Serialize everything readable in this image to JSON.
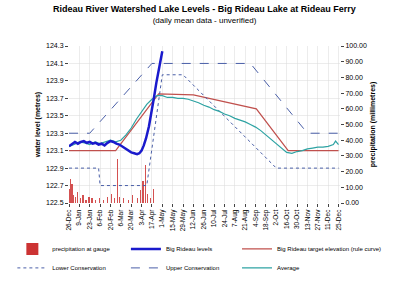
{
  "chart_data": {
    "type": "line",
    "title": "Rideau River Watershed Lake Levels - Big Rideau Lake at Rideau Ferry",
    "subtitle": "(daily mean data - unverified)",
    "y_label": "water level (metres)",
    "y2_label": "precipitation (millimetres)",
    "xlim": [
      0,
      366
    ],
    "xticks": [
      {
        "value": 0,
        "label": "26-Dec"
      },
      {
        "value": 14,
        "label": "9-Jan"
      },
      {
        "value": 28,
        "label": "23-Jan"
      },
      {
        "value": 42,
        "label": "6-Feb"
      },
      {
        "value": 56,
        "label": "20-Feb"
      },
      {
        "value": 70,
        "label": "6-Mar"
      },
      {
        "value": 84,
        "label": "20-Mar"
      },
      {
        "value": 98,
        "label": "3-Apr"
      },
      {
        "value": 112,
        "label": "17-Apr"
      },
      {
        "value": 126,
        "label": "1-May"
      },
      {
        "value": 140,
        "label": "15-May"
      },
      {
        "value": 154,
        "label": "29-May"
      },
      {
        "value": 168,
        "label": "12-Jun"
      },
      {
        "value": 182,
        "label": "26-Jun"
      },
      {
        "value": 196,
        "label": "10-Jul"
      },
      {
        "value": 210,
        "label": "24-Jul"
      },
      {
        "value": 224,
        "label": "7-Aug"
      },
      {
        "value": 238,
        "label": "21-Aug"
      },
      {
        "value": 252,
        "label": "4-Sep"
      },
      {
        "value": 266,
        "label": "18-Sep"
      },
      {
        "value": 280,
        "label": "2-Oct"
      },
      {
        "value": 294,
        "label": "16-Oct"
      },
      {
        "value": 308,
        "label": "30-Oct"
      },
      {
        "value": 322,
        "label": "13-Nov"
      },
      {
        "value": 336,
        "label": "27-Nov"
      },
      {
        "value": 350,
        "label": "11-Dec"
      },
      {
        "value": 364,
        "label": "25-Dec"
      }
    ],
    "ylim": [
      122.5,
      124.3
    ],
    "yticks": [
      122.5,
      122.7,
      122.9,
      123.1,
      123.3,
      123.5,
      123.7,
      123.9,
      124.1,
      124.3
    ],
    "y2lim": [
      0,
      100
    ],
    "y2ticks": [
      {
        "value": 0,
        "label": "0.00"
      },
      {
        "value": 10,
        "label": "10.00"
      },
      {
        "value": 20,
        "label": "20.00"
      },
      {
        "value": 30,
        "label": "30.00"
      },
      {
        "value": 40,
        "label": "40.00"
      },
      {
        "value": 50,
        "label": "50.00"
      },
      {
        "value": 60,
        "label": "60.00"
      },
      {
        "value": 70,
        "label": "70.00"
      },
      {
        "value": 80,
        "label": "80.00"
      },
      {
        "value": 90,
        "label": "90.00"
      },
      {
        "value": 100,
        "label": "100.00"
      }
    ],
    "grid": true,
    "legend": "bottom",
    "series": [
      {
        "name": "precipitation at gauge",
        "type": "bar",
        "axis": "y2",
        "color": "#cc3333",
        "x": [
          1,
          2,
          4,
          6,
          9,
          12,
          16,
          19,
          23,
          27,
          31,
          36,
          41,
          47,
          52,
          57,
          61,
          65,
          68,
          74,
          80,
          86,
          92,
          97,
          100,
          103,
          106,
          110,
          114
        ],
        "values": [
          9,
          15,
          12,
          5,
          4,
          7,
          3,
          5,
          2,
          4,
          3,
          2,
          3,
          2,
          4,
          6,
          3,
          28,
          4,
          3,
          2,
          5,
          3,
          8,
          14,
          24,
          6,
          3,
          9
        ]
      },
      {
        "name": "Big Rideau levels",
        "type": "line",
        "color": "#1a1acc",
        "line_style": "solid",
        "x": [
          0,
          4,
          8,
          12,
          16,
          20,
          24,
          28,
          32,
          36,
          40,
          44,
          48,
          52,
          56,
          60,
          64,
          68,
          72,
          76,
          80,
          84,
          88,
          92,
          95,
          98,
          101,
          104,
          108,
          112,
          115,
          118,
          121,
          124,
          126
        ],
        "values": [
          123.15,
          123.18,
          123.2,
          123.18,
          123.2,
          123.21,
          123.19,
          123.2,
          123.18,
          123.19,
          123.17,
          123.18,
          123.16,
          123.19,
          123.21,
          123.2,
          123.18,
          123.17,
          123.15,
          123.12,
          123.1,
          123.08,
          123.07,
          123.06,
          123.07,
          123.1,
          123.16,
          123.24,
          123.38,
          123.55,
          123.72,
          123.88,
          124.02,
          124.14,
          124.24
        ]
      },
      {
        "name": "Big Rideau target elevation (rule curve)",
        "type": "line",
        "color": "#c0504d",
        "line_style": "solid",
        "x": [
          0,
          63,
          121,
          168,
          253,
          296,
          364
        ],
        "values": [
          123.1,
          123.1,
          123.75,
          123.74,
          123.58,
          123.1,
          123.1
        ]
      },
      {
        "name": "Lower Conservation",
        "type": "line",
        "color": "#4a5fa8",
        "line_style": "dot",
        "x": [
          0,
          40,
          42,
          105,
          126,
          154,
          280,
          364
        ],
        "values": [
          122.9,
          122.9,
          122.7,
          122.7,
          123.97,
          123.97,
          122.9,
          122.9
        ]
      },
      {
        "name": "Upper Conservation",
        "type": "line",
        "color": "#4a5fa8",
        "line_style": "dash",
        "x": [
          0,
          28,
          112,
          245,
          322,
          364
        ],
        "values": [
          123.3,
          123.3,
          124.1,
          124.1,
          123.3,
          123.3
        ]
      },
      {
        "name": "Average",
        "type": "line",
        "color": "#2ea3a3",
        "line_style": "solid",
        "x": [
          0,
          7,
          14,
          21,
          28,
          35,
          42,
          49,
          56,
          63,
          70,
          77,
          84,
          91,
          98,
          105,
          112,
          119,
          126,
          133,
          140,
          147,
          154,
          161,
          168,
          175,
          182,
          189,
          196,
          203,
          210,
          217,
          224,
          231,
          238,
          245,
          252,
          259,
          266,
          273,
          280,
          287,
          294,
          301,
          308,
          315,
          322,
          329,
          336,
          343,
          350,
          357,
          360,
          364
        ],
        "values": [
          123.15,
          123.17,
          123.2,
          123.19,
          123.17,
          123.2,
          123.18,
          123.2,
          123.22,
          123.2,
          123.22,
          123.28,
          123.36,
          123.46,
          123.55,
          123.63,
          123.69,
          123.73,
          123.73,
          123.71,
          123.71,
          123.7,
          123.7,
          123.69,
          123.67,
          123.65,
          123.62,
          123.6,
          123.57,
          123.55,
          123.52,
          123.5,
          123.47,
          123.45,
          123.43,
          123.4,
          123.37,
          123.33,
          123.28,
          123.23,
          123.17,
          123.12,
          123.08,
          123.07,
          123.09,
          123.1,
          123.12,
          123.13,
          123.14,
          123.14,
          123.15,
          123.17,
          123.21,
          123.17
        ]
      }
    ]
  }
}
